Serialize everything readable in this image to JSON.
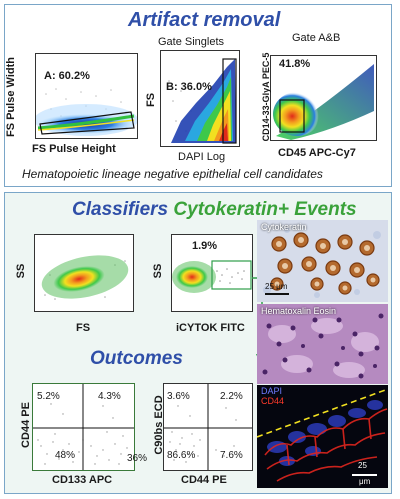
{
  "artifact": {
    "title": "Artifact removal",
    "gate_singlets": "Gate Singlets",
    "gate_ab": "Gate A&B",
    "plot1": {
      "gate": "A: 60.2%",
      "xlabel": "FS Pulse Height",
      "ylabel": "FS Pulse Width"
    },
    "plot2": {
      "gate": "B: 36.0%",
      "xlabel": "DAPI Log",
      "ylabel": "FS"
    },
    "plot3": {
      "gate": "41.8%",
      "xlabel": "CD45 APC-Cy7",
      "ylabel": "CD14-33-GlyA PEC-5"
    },
    "caption": "Hematopoietic lineage negative epithelial cell candidates"
  },
  "classifiers": {
    "title_blue": "Classifiers",
    "title_green": "Cytokeratin+ Events",
    "plot4": {
      "xlabel": "FS",
      "ylabel": "SS"
    },
    "plot5": {
      "gate": "1.9%",
      "xlabel": "iCYTOK FITC",
      "ylabel": "SS"
    },
    "img_cytokeratin": "Cytokeratin",
    "img_scale": "25 μm",
    "img_he": "Hematoxalin Eosin"
  },
  "outcomes": {
    "title": "Outcomes",
    "plot6": {
      "q_ul": "5.2%",
      "q_ur": "4.3%",
      "q_ll": "48%",
      "q_lr": "36%",
      "xlabel": "CD133 APC",
      "ylabel": "CD44 PE"
    },
    "plot7": {
      "q_ul": "3.6%",
      "q_ur": "2.2%",
      "q_ll": "86.6%",
      "q_lr": "7.6%",
      "xlabel": "CD44 PE",
      "ylabel": "C90bs ECD"
    },
    "fluor_dapi": "DAPI",
    "fluor_cd44": "CD44",
    "fluor_scale_num": "25",
    "fluor_scale_unit": "μm"
  },
  "colors": {
    "title_blue": "#2f4fa8",
    "title_green": "#3aa23a",
    "panel_border": "#7aa6c8",
    "arrow_green": "#2e9e4a"
  }
}
